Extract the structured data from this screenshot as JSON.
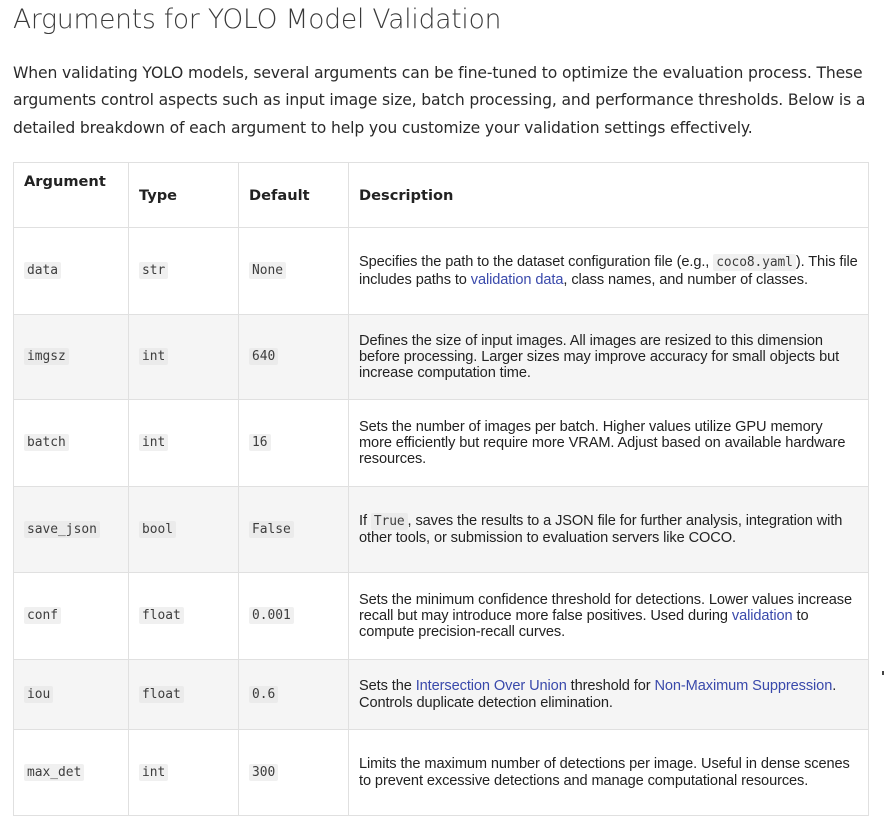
{
  "heading": "Arguments for YOLO Model Validation",
  "intro": "When validating YOLO models, several arguments can be fine-tuned to optimize the evaluation process. These arguments control aspects such as input image size, batch processing, and performance thresholds. Below is a detailed breakdown of each argument to help you customize your validation settings effectively.",
  "table": {
    "headers": {
      "argument": "Argument",
      "type": "Type",
      "default": "Default",
      "description": "Description"
    },
    "rows": [
      {
        "argument": "data",
        "type": "str",
        "default": "None",
        "desc": {
          "t1": "Specifies the path to the dataset configuration file (e.g., ",
          "code": "coco8.yaml",
          "t2": "). This file includes paths to ",
          "link": "validation data",
          "t3": ", class names, and number of classes."
        }
      },
      {
        "argument": "imgsz",
        "type": "int",
        "default": "640",
        "desc": "Defines the size of input images. All images are resized to this dimension before processing. Larger sizes may improve accuracy for small objects but increase computation time."
      },
      {
        "argument": "batch",
        "type": "int",
        "default": "16",
        "desc": "Sets the number of images per batch. Higher values utilize GPU memory more efficiently but require more VRAM. Adjust based on available hardware resources."
      },
      {
        "argument": "save_json",
        "type": "bool",
        "default": "False",
        "desc": {
          "t1": "If ",
          "code": "True",
          "t2": ", saves the results to a JSON file for further analysis, integration with other tools, or submission to evaluation servers like COCO."
        }
      },
      {
        "argument": "conf",
        "type": "float",
        "default": "0.001",
        "desc": {
          "t1": "Sets the minimum confidence threshold for detections. Lower values increase recall but may introduce more false positives. Used during ",
          "link": "validation",
          "t2": " to compute precision-recall curves."
        }
      },
      {
        "argument": "iou",
        "type": "float",
        "default": "0.6",
        "desc": {
          "t1": "Sets the ",
          "link1": "Intersection Over Union",
          "t2": " threshold for ",
          "link2": "Non-Maximum Suppression",
          "t3": ". Controls duplicate detection elimination."
        }
      },
      {
        "argument": "max_det",
        "type": "int",
        "default": "300",
        "desc": "Limits the maximum number of detections per image. Useful in dense scenes to prevent excessive detections and manage computational resources."
      }
    ]
  },
  "colors": {
    "link": "#3949ab",
    "border": "#e0e0e0",
    "stripe": "#f5f5f5"
  }
}
